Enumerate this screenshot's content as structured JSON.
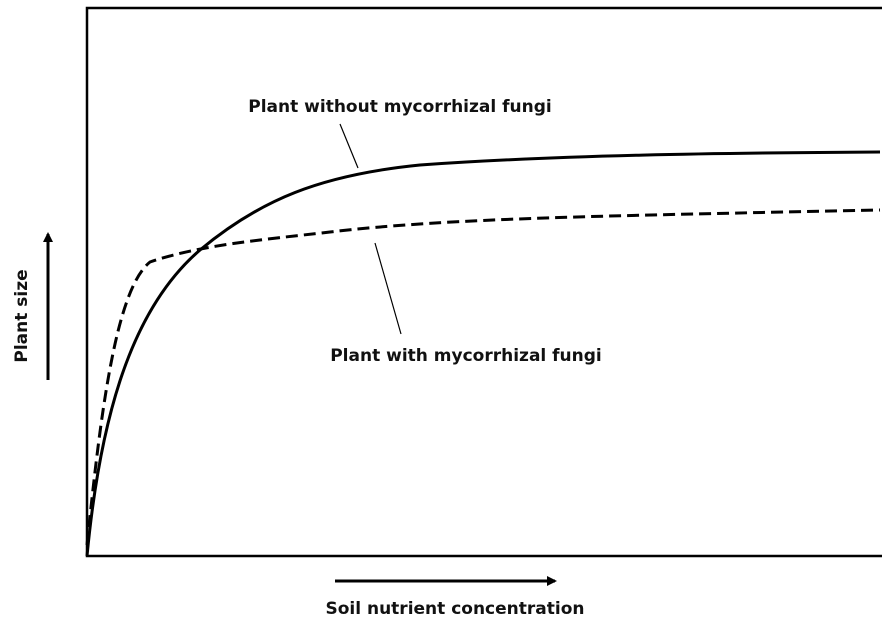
{
  "axes": {
    "x_label": "Soil nutrient concentration",
    "y_label": "Plant size"
  },
  "annotations": [
    "Plant without mycorrhizal fungi",
    "Plant with mycorrhizal fungi"
  ]
}
